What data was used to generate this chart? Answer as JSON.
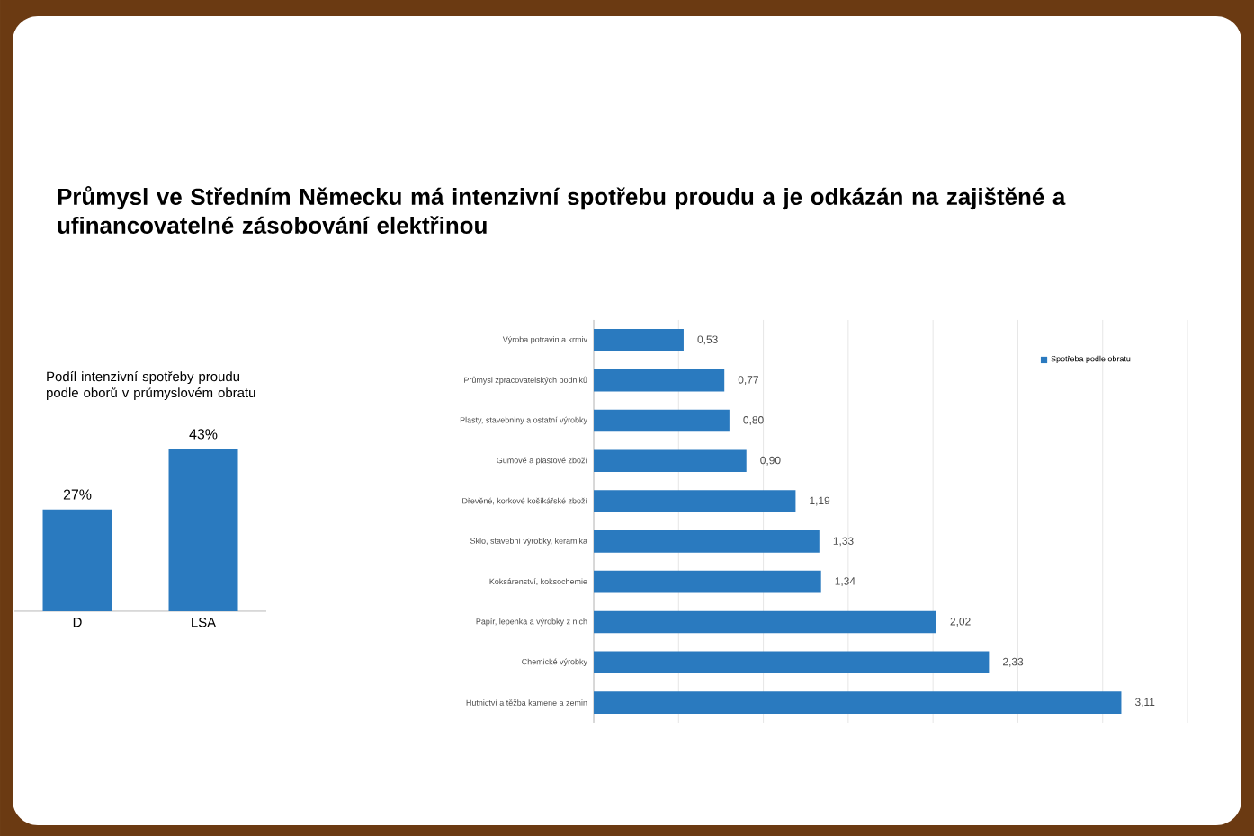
{
  "chart_data": [
    {
      "type": "bar",
      "title": "Průmysl ve Středním Německu má intenzivní spotřebu proudu a je odkázán na zajištěné a ufinancovatelné zásobování elektřinou",
      "subtitle": "Podíl intenzivní spotřeby proudu podle oborů v průmyslovém obratu",
      "categories": [
        "D",
        "LSA"
      ],
      "series": [
        {
          "color": "#2a7abf",
          "values": [
            27,
            43
          ],
          "value_labels": [
            "27%",
            "43%"
          ]
        }
      ]
    },
    {
      "type": "bar",
      "orientation": "horizontal",
      "categories": [
        "Výroba potravin a krmiv",
        "Průmysl zpracovatelských podniků",
        "Plasty, stavebniny a ostatní výrobky",
        "Gumové a plastové zboží",
        "Dřevěné, korkové košíkářské zboží",
        "Sklo, stavební výrobky, keramika",
        "Koksárenství, koksochemie",
        "Papír, lepenka a výrobky z nich",
        "Chemické výrobky",
        "Hutnictví a těžba kamene a zemin"
      ],
      "series": [
        {
          "name": "Spotřeba podle obratu",
          "color": "#2a7abf",
          "values": [
            0.53,
            0.77,
            0.8,
            0.9,
            1.19,
            1.33,
            1.34,
            2.02,
            2.33,
            3.11
          ],
          "value_labels": [
            "0,53",
            "0,77",
            "0,80",
            "0,90",
            "1,19",
            "1,33",
            "1,34",
            "2,02",
            "2,33",
            "3,11"
          ]
        }
      ],
      "xlim": [
        0,
        3.5
      ],
      "xticks": [
        {
          "value": 0,
          "label": null
        },
        {
          "value": 0.5,
          "label": null
        },
        {
          "value": 1,
          "label": null
        },
        {
          "value": 1.5,
          "label": null
        },
        {
          "value": 2,
          "label": null
        },
        {
          "value": 2.5,
          "label": null
        },
        {
          "value": 3,
          "label": null
        },
        {
          "value": 3.5,
          "label": null
        }
      ],
      "grid": "x",
      "legend": "top right"
    }
  ]
}
